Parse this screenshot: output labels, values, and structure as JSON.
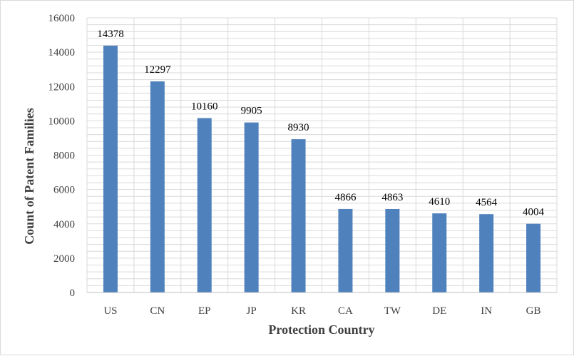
{
  "chart_data": {
    "type": "bar",
    "title": "",
    "xlabel": "Protection Country",
    "ylabel": "Count of Patent Families",
    "categories": [
      "US",
      "CN",
      "EP",
      "JP",
      "KR",
      "CA",
      "TW",
      "DE",
      "IN",
      "GB"
    ],
    "values": [
      14378,
      12297,
      10160,
      9905,
      8930,
      4866,
      4863,
      4610,
      4564,
      4004
    ],
    "data_labels": [
      "14378",
      "12297",
      "10160",
      "9905",
      "8930",
      "4866",
      "4863",
      "4610",
      "4564",
      "4004"
    ],
    "ylim": [
      0,
      16000
    ],
    "yticks": [
      0,
      2000,
      4000,
      6000,
      8000,
      10000,
      12000,
      14000,
      16000
    ],
    "ytick_labels": [
      "0",
      "2000",
      "4000",
      "6000",
      "8000",
      "10000",
      "12000",
      "14000",
      "16000"
    ],
    "minor_grid_step": 400,
    "grid": true,
    "legend": "none",
    "bar_color": "#4f81bd",
    "grid_color": "#d9d9d9",
    "axis_color": "#bfbfbf"
  }
}
